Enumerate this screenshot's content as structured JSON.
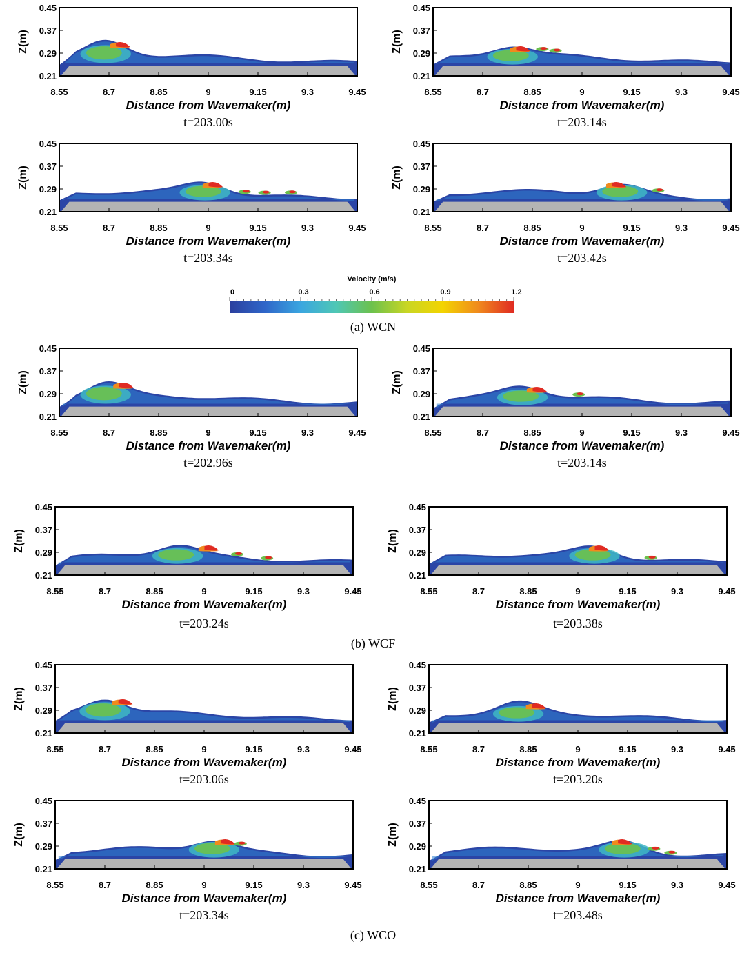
{
  "chart_data": {
    "type": "contour",
    "colorbar": {
      "title": "Velocity (m/s)",
      "ticks": [
        "0",
        "0.3",
        "0.6",
        "0.9",
        "1.2"
      ],
      "range": [
        0,
        1.2
      ],
      "colors": [
        "#2b3f9e",
        "#2f66c9",
        "#3aa6e0",
        "#4fc7b5",
        "#6cc14d",
        "#c9d624",
        "#f3d400",
        "#f08a1d",
        "#e02b22"
      ]
    },
    "axes": {
      "xlabel": "Distance from Wavemaker(m)",
      "ylabel": "Z(m)",
      "xticks": [
        "8.55",
        "8.7",
        "8.85",
        "9",
        "9.15",
        "9.3",
        "9.45"
      ],
      "yticks": [
        "0.45",
        "0.37",
        "0.29",
        "0.21"
      ],
      "xlim": [
        8.55,
        9.45
      ],
      "ylim": [
        0.21,
        0.45
      ]
    },
    "groups": [
      {
        "label": "(a)  WCN",
        "panels": [
          {
            "time": "t=203.00s",
            "crest_x": 8.69,
            "breaker_x": 8.73,
            "blobs": []
          },
          {
            "time": "t=203.14s",
            "crest_x": 8.79,
            "breaker_x": 8.81,
            "blobs": [
              8.88,
              8.92
            ]
          },
          {
            "time": "t=203.34s",
            "crest_x": 8.99,
            "breaker_x": 9.01,
            "blobs": [
              9.11,
              9.17,
              9.25
            ]
          },
          {
            "time": "t=203.42s",
            "crest_x": 9.12,
            "breaker_x": 9.1,
            "blobs": [
              9.23
            ]
          }
        ]
      },
      {
        "label": "(b)  WCF",
        "panels": [
          {
            "time": "t=202.96s",
            "crest_x": 8.69,
            "breaker_x": 8.74,
            "blobs": []
          },
          {
            "time": "t=203.14s",
            "crest_x": 8.82,
            "breaker_x": 8.86,
            "blobs": [
              8.99
            ]
          },
          {
            "time": "t=203.24s",
            "crest_x": 8.92,
            "breaker_x": 9.01,
            "blobs": [
              9.1,
              9.19
            ]
          },
          {
            "time": "t=203.38s",
            "crest_x": 9.05,
            "breaker_x": 9.06,
            "blobs": [
              9.22
            ]
          }
        ]
      },
      {
        "label": "(c)  WCO",
        "panels": [
          {
            "time": "t=203.06s",
            "crest_x": 8.7,
            "breaker_x": 8.75,
            "blobs": []
          },
          {
            "time": "t=203.20s",
            "crest_x": 8.82,
            "breaker_x": 8.87,
            "blobs": []
          },
          {
            "time": "t=203.34s",
            "crest_x": 9.03,
            "breaker_x": 9.06,
            "blobs": [
              9.11
            ]
          },
          {
            "time": "t=203.48s",
            "crest_x": 9.14,
            "breaker_x": 9.13,
            "blobs": [
              9.23,
              9.28
            ]
          }
        ]
      }
    ]
  }
}
